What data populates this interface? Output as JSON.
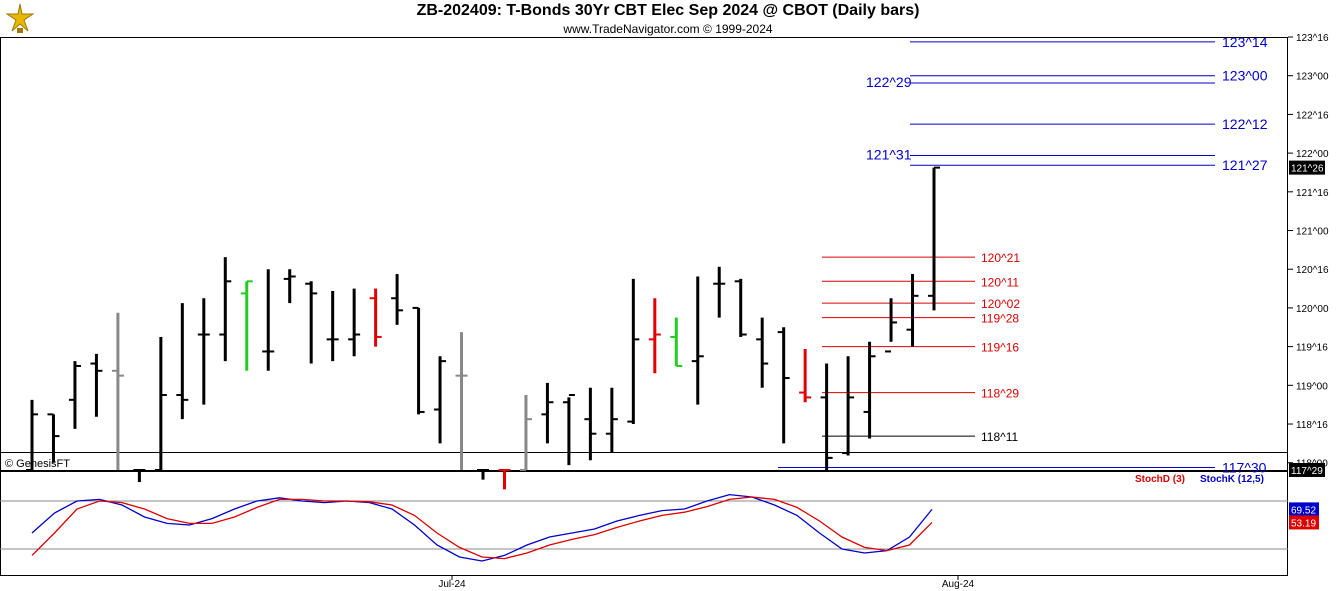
{
  "header": {
    "title": "ZB-202409:  T-Bonds 30Yr CBT Elec Sep 2024 @ CBOT  (Daily bars)",
    "subtitle": "www.TradeNavigator.com © 1999-2024",
    "copyright": "© GenesisFT"
  },
  "colors": {
    "bar": "#000000",
    "down_bar": "#e00000",
    "up_bar": "#22cc22",
    "gray_bar": "#888888",
    "blue_level": "#0000cc",
    "red_level": "#dd0000",
    "stoch_d": "#dd0000",
    "stoch_k": "#0000cc"
  },
  "chart_data": [
    {
      "type": "ohlc",
      "name": "price",
      "y_ticks": [
        "123^16",
        "123^00",
        "122^16",
        "122^00",
        "121^16",
        "121^00",
        "120^16",
        "120^00",
        "119^16",
        "119^00",
        "118^16",
        "118^00"
      ],
      "last_price_label": "121^26",
      "low_price_label": "117^29",
      "bars": [
        {
          "o": "117^21",
          "h": "118^26",
          "l": "117^17",
          "c": "118^20",
          "color": "black"
        },
        {
          "o": "118^20",
          "h": "118^20",
          "l": "118^00",
          "c": "118^11",
          "color": "black"
        },
        {
          "o": "118^26",
          "h": "119^10",
          "l": "118^14",
          "c": "119^08",
          "color": "black"
        },
        {
          "o": "119^09",
          "h": "119^13",
          "l": "118^19",
          "c": "119^06",
          "color": "black"
        },
        {
          "o": "119^06",
          "h": "119^30",
          "l": "117^19",
          "c": "119^04",
          "color": "gray"
        },
        {
          "o": "117^18",
          "h": "117^24",
          "l": "117^17",
          "c": "117^19",
          "color": "black"
        },
        {
          "o": "117^19",
          "h": "119^20",
          "l": "117^17",
          "c": "118^28",
          "color": "black"
        },
        {
          "o": "118^28",
          "h": "120^02",
          "l": "118^18",
          "c": "118^26",
          "color": "black"
        },
        {
          "o": "119^21",
          "h": "120^04",
          "l": "118^24",
          "c": "119^21",
          "color": "black"
        },
        {
          "o": "119^21",
          "h": "120^21",
          "l": "119^10",
          "c": "120^11",
          "color": "black"
        },
        {
          "o": "120^06",
          "h": "120^11",
          "l": "119^06",
          "c": "120^11",
          "color": "green"
        },
        {
          "o": "119^14",
          "h": "120^16",
          "l": "119^06",
          "c": "119^14",
          "color": "black"
        },
        {
          "o": "120^12",
          "h": "120^16",
          "l": "120^02",
          "c": "120^13",
          "color": "black"
        },
        {
          "o": "120^10",
          "h": "120^11",
          "l": "119^09",
          "c": "120^06",
          "color": "black"
        },
        {
          "o": "119^19",
          "h": "120^07",
          "l": "119^10",
          "c": "119^19",
          "color": "black"
        },
        {
          "o": "119^19",
          "h": "120^08",
          "l": "119^12",
          "c": "119^21",
          "color": "black"
        },
        {
          "o": "120^04",
          "h": "120^08",
          "l": "119^16",
          "c": "119^20",
          "color": "red"
        },
        {
          "o": "120^04",
          "h": "120^14",
          "l": "119^25",
          "c": "119^31",
          "color": "black"
        },
        {
          "o": "120^00",
          "h": "120^00",
          "l": "118^20",
          "c": "118^21",
          "color": "black"
        },
        {
          "o": "118^22",
          "h": "119^12",
          "l": "118^08",
          "c": "119^10",
          "color": "black"
        },
        {
          "o": "119^04",
          "h": "119^22",
          "l": "117^19",
          "c": "119^04",
          "color": "gray"
        },
        {
          "o": "117^18",
          "h": "117^25",
          "l": "117^17",
          "c": "117^18",
          "color": "black"
        },
        {
          "o": "117^21",
          "h": "117^21",
          "l": "117^17",
          "c": "117^21",
          "color": "red"
        },
        {
          "o": "117^18",
          "h": "118^28",
          "l": "117^17",
          "c": "118^18",
          "color": "gray"
        },
        {
          "o": "118^20",
          "h": "119^01",
          "l": "118^08",
          "c": "118^25",
          "color": "black"
        },
        {
          "o": "118^25",
          "h": "118^27",
          "l": "117^31",
          "c": "118^28",
          "color": "black"
        },
        {
          "o": "118^18",
          "h": "118^31",
          "l": "118^01",
          "c": "118^12",
          "color": "black"
        },
        {
          "o": "118^12",
          "h": "118^31",
          "l": "118^04",
          "c": "118^18",
          "color": "black"
        },
        {
          "o": "118^17",
          "h": "120^12",
          "l": "118^16",
          "c": "119^19",
          "color": "black"
        },
        {
          "o": "119^19",
          "h": "120^04",
          "l": "119^05",
          "c": "119^21",
          "color": "red"
        },
        {
          "o": "119^20",
          "h": "119^28",
          "l": "119^08",
          "c": "119^08",
          "color": "green"
        },
        {
          "o": "119^10",
          "h": "120^13",
          "l": "118^24",
          "c": "119^12",
          "color": "black"
        },
        {
          "o": "120^10",
          "h": "120^17",
          "l": "119^28",
          "c": "120^10",
          "color": "black"
        },
        {
          "o": "120^11",
          "h": "120^12",
          "l": "119^20",
          "c": "119^21",
          "color": "black"
        },
        {
          "o": "119^19",
          "h": "119^28",
          "l": "118^31",
          "c": "119^09",
          "color": "black"
        },
        {
          "o": "119^22",
          "h": "119^24",
          "l": "118^08",
          "c": "119^03",
          "color": "black"
        },
        {
          "o": "118^29",
          "h": "119^15",
          "l": "118^25",
          "c": "118^27",
          "color": "red"
        },
        {
          "o": "118^27",
          "h": "119^09",
          "l": "117^29",
          "c": "118^02",
          "color": "black"
        },
        {
          "o": "118^04",
          "h": "119^12",
          "l": "118^03",
          "c": "118^27",
          "color": "black"
        },
        {
          "o": "118^21",
          "h": "119^18",
          "l": "118^10",
          "c": "119^12",
          "color": "black"
        },
        {
          "o": "119^14",
          "h": "120^04",
          "l": "119^18",
          "c": "119^26",
          "color": "black"
        },
        {
          "o": "119^23",
          "h": "120^14",
          "l": "119^16",
          "c": "120^05",
          "color": "black"
        },
        {
          "o": "120^05",
          "h": "121^26",
          "l": "119^31",
          "c": "121^26",
          "color": "black"
        }
      ],
      "levels": [
        {
          "label": "123^14",
          "price": "123^14",
          "color": "blue"
        },
        {
          "label": "123^00",
          "price": "123^00",
          "color": "blue"
        },
        {
          "label": "122^29",
          "price": "122^29",
          "color": "blue"
        },
        {
          "label": "122^12",
          "price": "122^12",
          "color": "blue"
        },
        {
          "label": "121^31",
          "price": "121^31",
          "color": "blue"
        },
        {
          "label": "121^27",
          "price": "121^27",
          "color": "blue"
        },
        {
          "label": "120^21",
          "price": "120^21",
          "color": "red"
        },
        {
          "label": "120^11",
          "price": "120^11",
          "color": "red"
        },
        {
          "label": "120^02",
          "price": "120^02",
          "color": "red"
        },
        {
          "label": "119^28",
          "price": "119^28",
          "color": "red"
        },
        {
          "label": "119^16",
          "price": "119^16",
          "color": "red"
        },
        {
          "label": "118^29",
          "price": "118^29",
          "color": "red"
        },
        {
          "label": "118^11",
          "price": "118^11",
          "color": "black"
        },
        {
          "label": "117^30",
          "price": "117^30",
          "color": "blue"
        }
      ]
    },
    {
      "type": "line",
      "name": "stochastic",
      "legend": [
        "StochD (3)",
        "StochK (12,5)"
      ],
      "last_values": {
        "k": "69.52",
        "d": "53.19"
      },
      "series": [
        {
          "name": "StochK (12,5)",
          "color": "blue",
          "values": [
            40,
            65,
            80,
            82,
            75,
            60,
            52,
            50,
            58,
            70,
            80,
            84,
            80,
            78,
            80,
            78,
            70,
            50,
            25,
            10,
            5,
            12,
            25,
            35,
            40,
            45,
            55,
            62,
            68,
            70,
            80,
            88,
            85,
            75,
            62,
            40,
            20,
            15,
            18,
            35,
            69.52
          ]
        },
        {
          "name": "StochD (3)",
          "color": "red",
          "values": [
            12,
            40,
            70,
            80,
            78,
            70,
            58,
            52,
            52,
            60,
            72,
            82,
            82,
            80,
            80,
            79,
            75,
            62,
            40,
            22,
            10,
            8,
            15,
            25,
            32,
            38,
            47,
            55,
            62,
            66,
            73,
            82,
            85,
            82,
            72,
            55,
            35,
            22,
            18,
            25,
            53.19
          ]
        }
      ]
    }
  ],
  "x_axis": {
    "labels": [
      "Jul-24",
      "Aug-24"
    ]
  }
}
